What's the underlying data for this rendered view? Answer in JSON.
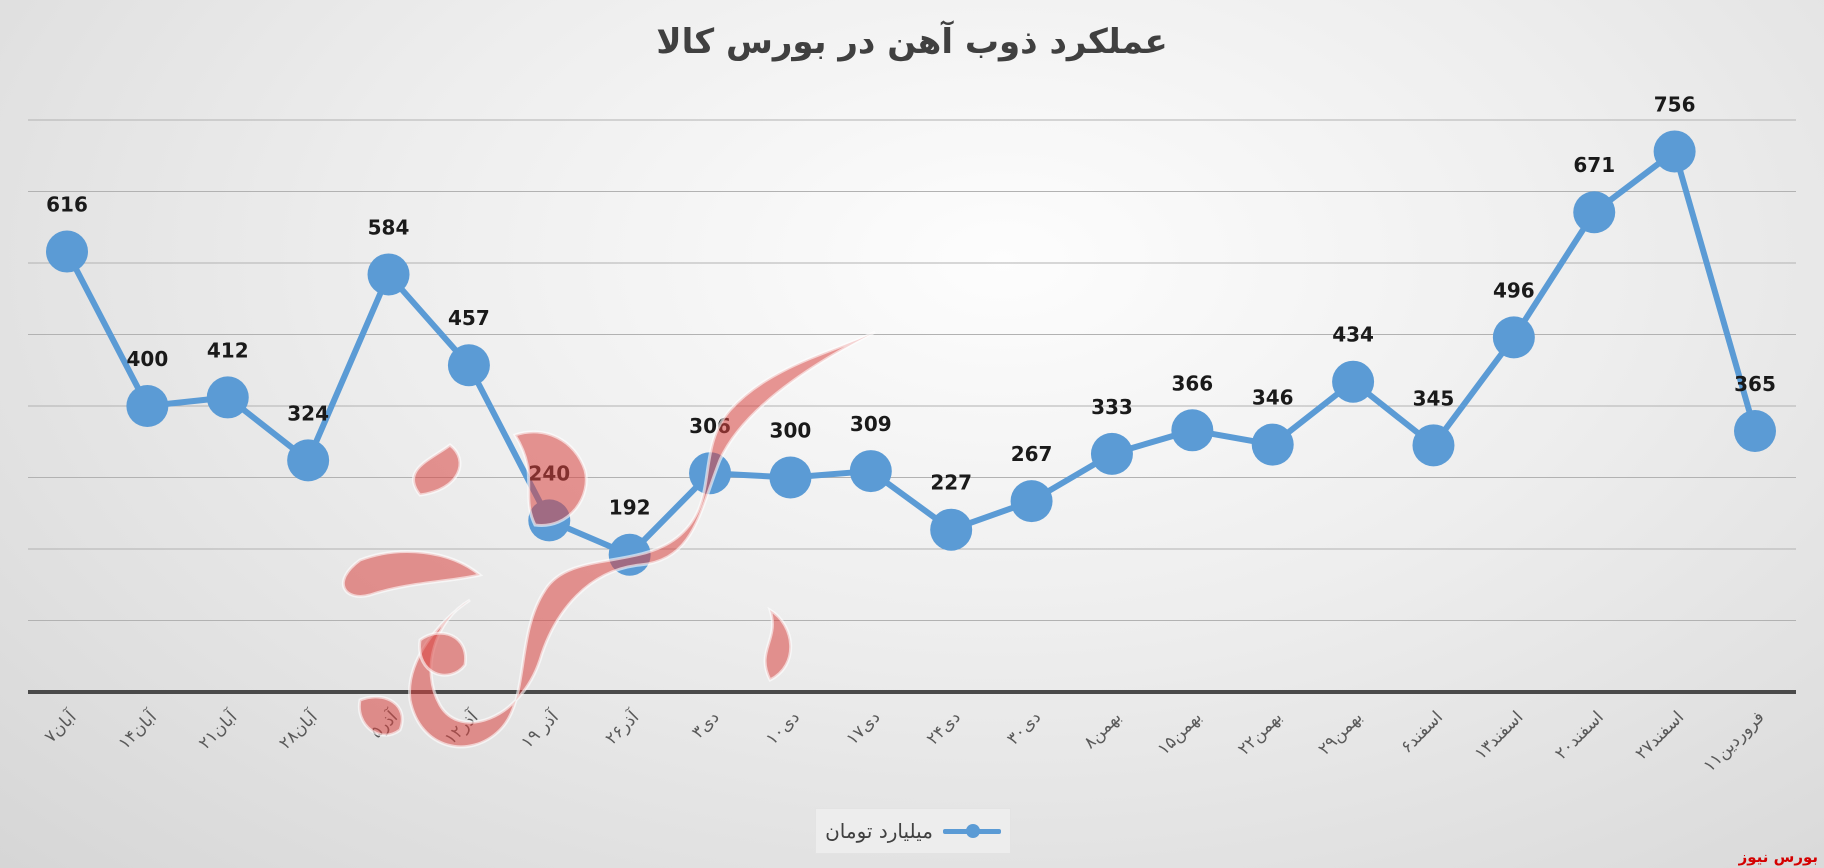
{
  "chart_data": {
    "type": "line",
    "title": "عملکرد ذوب آهن در بورس کالا",
    "categories": [
      "۷آبان",
      "۱۴آبان",
      "۲۱آبان",
      "۲۸آبان",
      "۵آذر",
      "۱۲آذر",
      "۱۹ آذر",
      "۲۶آذر",
      "۳دی",
      "۱۰دی",
      "۱۷دی",
      "۲۴دی",
      "۳۰دی",
      "۸بهمن",
      "۱۵بهمن",
      "۲۲بهمن",
      "۲۹بهمن",
      "۶اسفند",
      "۱۳اسفند",
      "۲۰اسفند",
      "۲۷اسفند",
      "۱۱فروردین"
    ],
    "series": [
      {
        "name": "میلیارد تومان",
        "values": [
          616,
          400,
          412,
          324,
          584,
          457,
          240,
          192,
          306,
          300,
          309,
          227,
          267,
          333,
          366,
          346,
          434,
          345,
          496,
          671,
          756,
          365
        ],
        "color": "#5b9bd5"
      }
    ],
    "ylim": [
      0,
      800
    ],
    "grid": true,
    "legend_position": "bottom"
  },
  "watermark_text": "بورس نیوز",
  "brand_text": "بورس نیوز"
}
